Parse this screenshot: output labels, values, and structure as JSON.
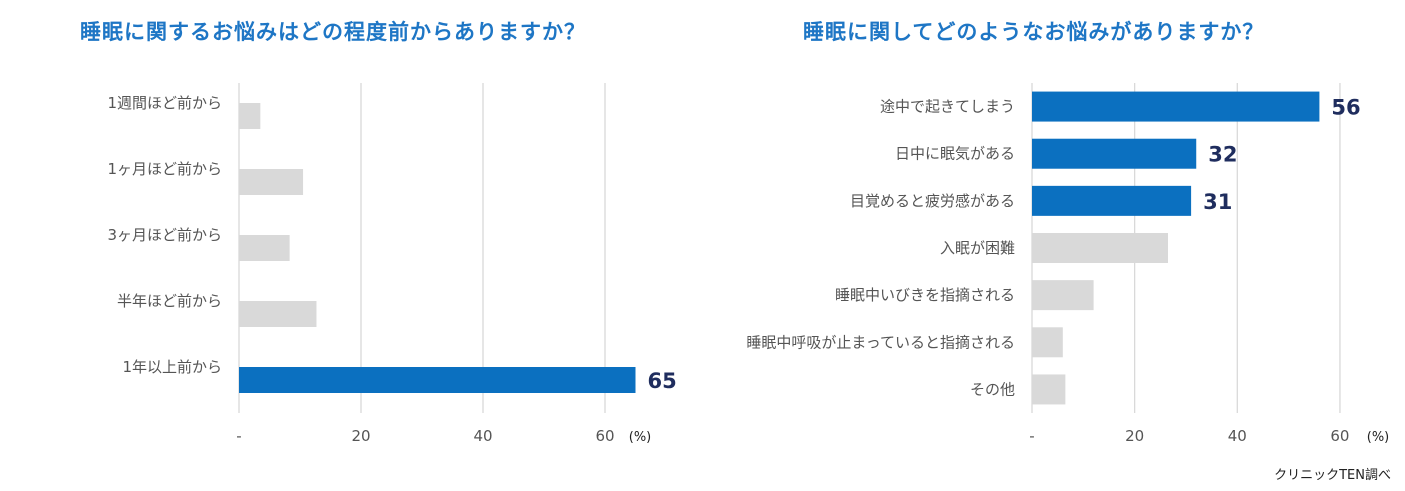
{
  "source": "クリニックTEN調べ",
  "colors": {
    "highlight": "#0b70c0",
    "base": "#d9d9d9",
    "grid": "#d9d9d9",
    "label": "#555555",
    "value": "#1f2d5e"
  },
  "chart_data": [
    {
      "type": "bar",
      "orientation": "horizontal",
      "title": "睡眠に関するお悩みはどの程度前からありますか？",
      "categories": [
        "1週間ほど前から",
        "1ヶ月ほど前から",
        "3ヶ月ほど前から",
        "半年ほど前から",
        "1年以上前から"
      ],
      "values": [
        3.5,
        10.5,
        8.3,
        12.7,
        65
      ],
      "highlight": [
        false,
        false,
        false,
        false,
        true
      ],
      "data_labels": [
        "",
        "",
        "",
        "",
        "65"
      ],
      "xlim": [
        0,
        70
      ],
      "xticks": [
        "-",
        "20",
        "40",
        "60"
      ],
      "xtick_values": [
        0,
        20,
        40,
        60
      ],
      "unit": "(%)",
      "grid": true
    },
    {
      "type": "bar",
      "orientation": "horizontal",
      "title": "睡眠に関してどのようなお悩みがありますか？",
      "categories": [
        "途中で起きてしまう",
        "日中に眠気がある",
        "目覚めると疲労感がある",
        "入眠が困難",
        "睡眠中いびきを指摘される",
        "睡眠中呼吸が止まっていると指摘される",
        "その他"
      ],
      "values": [
        56,
        32,
        31,
        26.5,
        12,
        6,
        6.5
      ],
      "highlight": [
        true,
        true,
        true,
        false,
        false,
        false,
        false
      ],
      "data_labels": [
        "56",
        "32",
        "31",
        "",
        "",
        "",
        ""
      ],
      "xlim": [
        0,
        68
      ],
      "xticks": [
        "-",
        "20",
        "40",
        "60"
      ],
      "xtick_values": [
        0,
        20,
        40,
        60
      ],
      "unit": "(%)",
      "grid": true
    }
  ]
}
